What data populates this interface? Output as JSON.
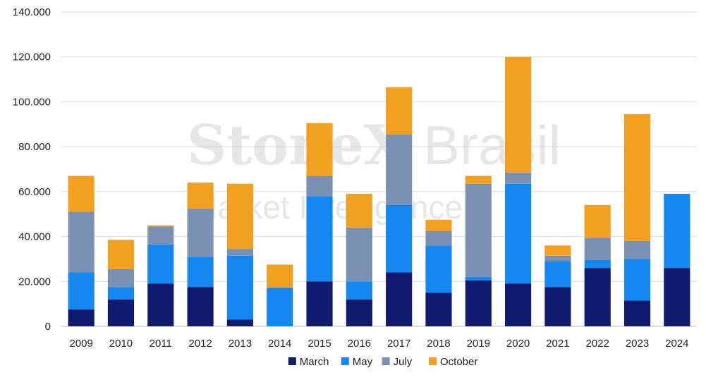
{
  "chart_data": {
    "type": "bar",
    "stacked": true,
    "title": "",
    "xlabel": "",
    "ylabel": "",
    "categories": [
      "2009",
      "2010",
      "2011",
      "2012",
      "2013",
      "2014",
      "2015",
      "2016",
      "2017",
      "2018",
      "2019",
      "2020",
      "2021",
      "2022",
      "2023",
      "2024"
    ],
    "series": [
      {
        "name": "March",
        "color": "#101a6e",
        "values": [
          7500,
          12000,
          19000,
          17500,
          3000,
          0,
          20000,
          12000,
          24000,
          15000,
          20500,
          19000,
          17500,
          26000,
          11500,
          26000
        ]
      },
      {
        "name": "May",
        "color": "#1487f0",
        "values": [
          16500,
          5500,
          17500,
          13500,
          28500,
          17000,
          38000,
          8000,
          30000,
          21000,
          1500,
          44500,
          11500,
          3500,
          18500,
          33000
        ]
      },
      {
        "name": "July",
        "color": "#7b91b3",
        "values": [
          27000,
          8000,
          8000,
          21500,
          3000,
          500,
          9000,
          24000,
          31500,
          6500,
          41500,
          5000,
          2500,
          10000,
          8000,
          0
        ]
      },
      {
        "name": "October",
        "color": "#f2a01f",
        "values": [
          16000,
          13000,
          500,
          11500,
          29000,
          10000,
          23500,
          15000,
          21000,
          5000,
          3500,
          51500,
          4500,
          14500,
          56500,
          0
        ]
      }
    ],
    "ylim": [
      0,
      140000
    ],
    "yticks": [
      0,
      20000,
      40000,
      60000,
      80000,
      100000,
      120000,
      140000
    ],
    "ytick_labels": [
      "0",
      "20.000",
      "40.000",
      "60.000",
      "80.000",
      "100.000",
      "120.000",
      "140.000"
    ],
    "grid": true,
    "legend_position": "bottom"
  },
  "watermark": {
    "brand_a": "StoneX",
    "brand_b": "Brasil",
    "tagline": "Market Intelligence"
  }
}
